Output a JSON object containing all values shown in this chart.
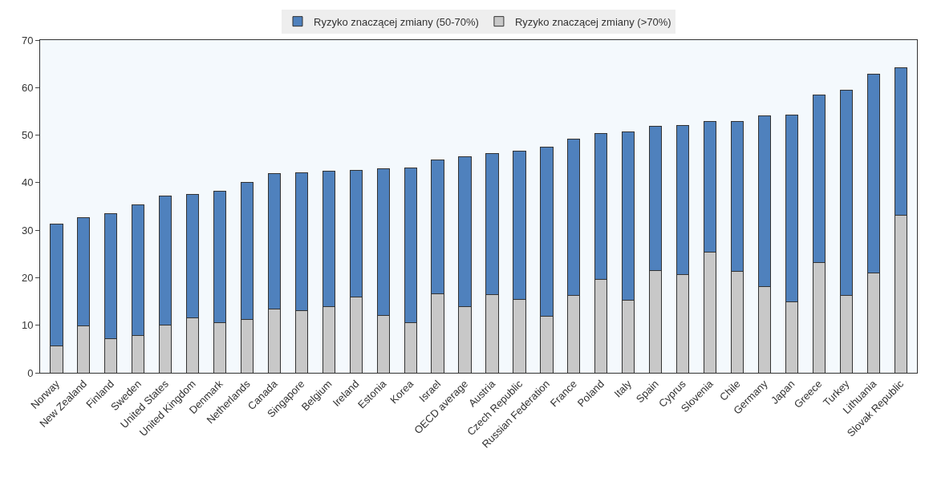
{
  "chart_data": {
    "type": "bar",
    "stacked": true,
    "categories": [
      "Norway",
      "New Zealand",
      "Finland",
      "Sweden",
      "United States",
      "United Kingdom",
      "Denmark",
      "Netherlands",
      "Canada",
      "Singapore",
      "Belgium",
      "Ireland",
      "Estonia",
      "Korea",
      "Israel",
      "OECD average",
      "Austria",
      "Czech Republic",
      "Russian Federation",
      "France",
      "Poland",
      "Italy",
      "Spain",
      "Cyprus",
      "Slovenia",
      "Chile",
      "Germany",
      "Japan",
      "Greece",
      "Turkey",
      "Lithuania",
      "Slovak Republic"
    ],
    "series": [
      {
        "name": "Ryzyko znaczącej zmiany (>70%)",
        "color": "#c8c8c8",
        "values": [
          5.7,
          9.9,
          7.2,
          7.8,
          10.1,
          11.6,
          10.6,
          11.3,
          13.4,
          13.0,
          13.9,
          15.9,
          12.0,
          10.5,
          16.6,
          13.9,
          16.5,
          15.4,
          11.9,
          16.3,
          19.7,
          15.2,
          21.5,
          20.7,
          25.4,
          21.4,
          18.2,
          15.0,
          23.2,
          16.3,
          21.0,
          33.2
        ]
      },
      {
        "name": "Ryzyko znaczącej zmiany (50-70%)",
        "color": "#4f81bd",
        "values": [
          25.6,
          22.8,
          26.3,
          27.5,
          27.1,
          26.0,
          27.6,
          28.7,
          28.6,
          29.1,
          28.5,
          26.7,
          30.9,
          32.6,
          28.1,
          31.5,
          29.7,
          31.2,
          35.5,
          32.8,
          30.6,
          35.5,
          30.3,
          31.3,
          27.4,
          31.4,
          35.8,
          39.2,
          35.3,
          43.1,
          41.8,
          31.0
        ]
      }
    ],
    "ylim": [
      0,
      70
    ],
    "yticks": [
      0,
      10,
      20,
      30,
      40,
      50,
      60,
      70
    ],
    "grid": false,
    "legend": "top"
  }
}
